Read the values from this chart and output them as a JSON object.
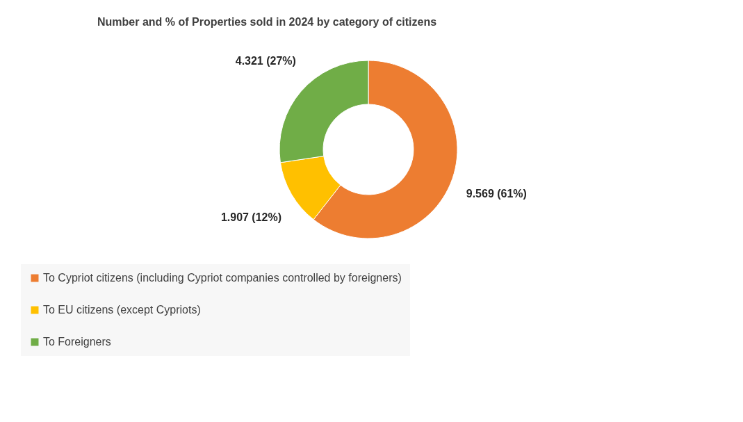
{
  "chart_data": {
    "type": "donut",
    "title": "Number and % of Properties sold in 2024 by category of citizens",
    "categories": [
      "To Cypriot citizens (including Cypriot companies controlled by foreigners)",
      "To EU citizens (except Cypriots)",
      "To Foreigners"
    ],
    "values": [
      9569,
      1907,
      4321
    ],
    "colors": [
      "#ed7d31",
      "#ffc000",
      "#70ad47"
    ],
    "value_labels": [
      "9.569 (61%)",
      "1.907 (12%)",
      "4.321 (27%)"
    ],
    "legend": "bottom"
  }
}
